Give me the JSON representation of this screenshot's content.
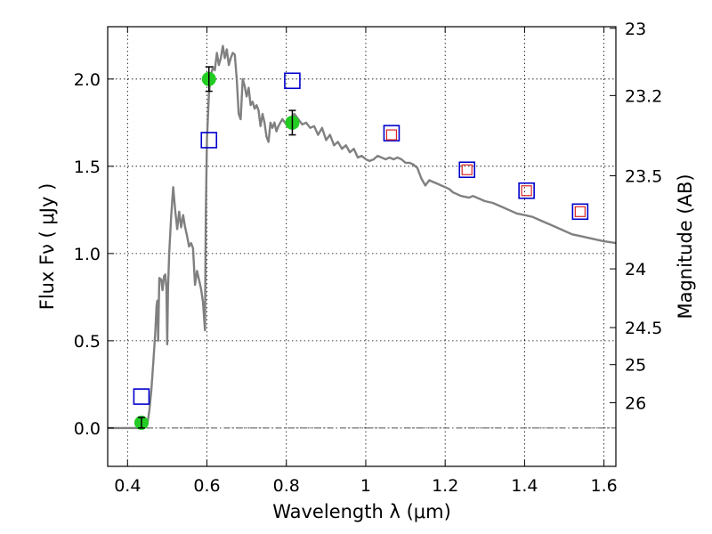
{
  "chart_data": {
    "type": "line",
    "title": "",
    "xlabel": "Wavelength  λ (μm)",
    "ylabel": "Flux  Fν  ( μJy )",
    "y2label": "Magnitude (AB)",
    "xlim": [
      0.35,
      1.63
    ],
    "ylim": [
      -0.22,
      2.3
    ],
    "grid": true,
    "legend": "none",
    "x_ticks": [
      {
        "value": 0.4,
        "label": "0.4"
      },
      {
        "value": 0.6,
        "label": "0.6"
      },
      {
        "value": 0.8,
        "label": "0.8"
      },
      {
        "value": 1.0,
        "label": "1"
      },
      {
        "value": 1.2,
        "label": "1.2"
      },
      {
        "value": 1.4,
        "label": "1.4"
      },
      {
        "value": 1.6,
        "label": "1.6"
      }
    ],
    "y_ticks": [
      {
        "value": 0.0,
        "label": "0.0"
      },
      {
        "value": 0.5,
        "label": "0.5"
      },
      {
        "value": 1.0,
        "label": "1.0"
      },
      {
        "value": 1.5,
        "label": "1.5"
      },
      {
        "value": 2.0,
        "label": "2.0"
      }
    ],
    "y2_ticks": [
      {
        "value": 23,
        "label": "23"
      },
      {
        "value": 23.2,
        "label": "23.2"
      },
      {
        "value": 23.5,
        "label": "23.5"
      },
      {
        "value": 24,
        "label": "24"
      },
      {
        "value": 24.5,
        "label": "24.5"
      },
      {
        "value": 25,
        "label": "25"
      },
      {
        "value": 26,
        "label": "26"
      }
    ],
    "zero_line": {
      "y": 0.0,
      "style": "dash-dot",
      "color": "#555555"
    },
    "series": [
      {
        "kind": "line",
        "color": "#808080",
        "points": [
          [
            0.35,
            0.0
          ],
          [
            0.44,
            0.0
          ],
          [
            0.45,
            0.02
          ],
          [
            0.455,
            0.1
          ],
          [
            0.46,
            0.22
          ],
          [
            0.465,
            0.38
          ],
          [
            0.47,
            0.55
          ],
          [
            0.473,
            0.7
          ],
          [
            0.475,
            0.73
          ],
          [
            0.477,
            0.5
          ],
          [
            0.48,
            0.86
          ],
          [
            0.485,
            0.85
          ],
          [
            0.488,
            0.79
          ],
          [
            0.492,
            0.87
          ],
          [
            0.495,
            0.88
          ],
          [
            0.498,
            0.8
          ],
          [
            0.5,
            0.48
          ],
          [
            0.502,
            0.8
          ],
          [
            0.505,
            1.0
          ],
          [
            0.51,
            1.22
          ],
          [
            0.515,
            1.38
          ],
          [
            0.52,
            1.25
          ],
          [
            0.525,
            1.14
          ],
          [
            0.53,
            1.24
          ],
          [
            0.535,
            1.15
          ],
          [
            0.54,
            1.22
          ],
          [
            0.545,
            1.15
          ],
          [
            0.55,
            1.1
          ],
          [
            0.555,
            1.04
          ],
          [
            0.56,
            1.06
          ],
          [
            0.565,
            1.03
          ],
          [
            0.57,
            0.82
          ],
          [
            0.575,
            0.9
          ],
          [
            0.58,
            0.85
          ],
          [
            0.585,
            0.8
          ],
          [
            0.59,
            0.72
          ],
          [
            0.595,
            0.56
          ],
          [
            0.597,
            1.2
          ],
          [
            0.6,
            1.65
          ],
          [
            0.605,
            1.92
          ],
          [
            0.61,
            2.02
          ],
          [
            0.615,
            2.07
          ],
          [
            0.62,
            2.05
          ],
          [
            0.625,
            2.15
          ],
          [
            0.63,
            2.08
          ],
          [
            0.635,
            2.12
          ],
          [
            0.64,
            2.19
          ],
          [
            0.645,
            2.12
          ],
          [
            0.65,
            2.17
          ],
          [
            0.655,
            2.08
          ],
          [
            0.66,
            2.12
          ],
          [
            0.665,
            2.15
          ],
          [
            0.67,
            2.14
          ],
          [
            0.675,
            2.0
          ],
          [
            0.68,
            1.8
          ],
          [
            0.685,
            1.77
          ],
          [
            0.69,
            2.0
          ],
          [
            0.695,
            1.96
          ],
          [
            0.7,
            1.9
          ],
          [
            0.705,
            1.95
          ],
          [
            0.71,
            1.85
          ],
          [
            0.715,
            1.87
          ],
          [
            0.72,
            1.83
          ],
          [
            0.725,
            1.85
          ],
          [
            0.73,
            1.82
          ],
          [
            0.735,
            1.73
          ],
          [
            0.74,
            1.8
          ],
          [
            0.745,
            1.75
          ],
          [
            0.75,
            1.67
          ],
          [
            0.755,
            1.64
          ],
          [
            0.76,
            1.75
          ],
          [
            0.765,
            1.72
          ],
          [
            0.77,
            1.75
          ],
          [
            0.775,
            1.7
          ],
          [
            0.78,
            1.73
          ],
          [
            0.79,
            1.77
          ],
          [
            0.8,
            1.74
          ],
          [
            0.81,
            1.76
          ],
          [
            0.82,
            1.8
          ],
          [
            0.83,
            1.77
          ],
          [
            0.84,
            1.74
          ],
          [
            0.85,
            1.75
          ],
          [
            0.86,
            1.72
          ],
          [
            0.87,
            1.73
          ],
          [
            0.88,
            1.68
          ],
          [
            0.89,
            1.72
          ],
          [
            0.9,
            1.65
          ],
          [
            0.91,
            1.68
          ],
          [
            0.92,
            1.62
          ],
          [
            0.93,
            1.64
          ],
          [
            0.94,
            1.6
          ],
          [
            0.95,
            1.62
          ],
          [
            0.96,
            1.58
          ],
          [
            0.97,
            1.6
          ],
          [
            0.98,
            1.55
          ],
          [
            0.99,
            1.56
          ],
          [
            1.0,
            1.54
          ],
          [
            1.01,
            1.53
          ],
          [
            1.02,
            1.54
          ],
          [
            1.03,
            1.56
          ],
          [
            1.04,
            1.55
          ],
          [
            1.05,
            1.54
          ],
          [
            1.06,
            1.55
          ],
          [
            1.07,
            1.54
          ],
          [
            1.08,
            1.55
          ],
          [
            1.09,
            1.54
          ],
          [
            1.1,
            1.52
          ],
          [
            1.11,
            1.52
          ],
          [
            1.12,
            1.51
          ],
          [
            1.13,
            1.49
          ],
          [
            1.14,
            1.43
          ],
          [
            1.15,
            1.39
          ],
          [
            1.16,
            1.42
          ],
          [
            1.17,
            1.41
          ],
          [
            1.18,
            1.4
          ],
          [
            1.19,
            1.39
          ],
          [
            1.2,
            1.38
          ],
          [
            1.21,
            1.37
          ],
          [
            1.22,
            1.35
          ],
          [
            1.23,
            1.34
          ],
          [
            1.24,
            1.33
          ],
          [
            1.26,
            1.32
          ],
          [
            1.27,
            1.33
          ],
          [
            1.28,
            1.32
          ],
          [
            1.3,
            1.3
          ],
          [
            1.32,
            1.29
          ],
          [
            1.34,
            1.27
          ],
          [
            1.36,
            1.25
          ],
          [
            1.38,
            1.23
          ],
          [
            1.4,
            1.22
          ],
          [
            1.42,
            1.21
          ],
          [
            1.44,
            1.19
          ],
          [
            1.46,
            1.17
          ],
          [
            1.48,
            1.15
          ],
          [
            1.5,
            1.13
          ],
          [
            1.52,
            1.11
          ],
          [
            1.54,
            1.1
          ],
          [
            1.56,
            1.09
          ],
          [
            1.58,
            1.08
          ],
          [
            1.6,
            1.07
          ],
          [
            1.63,
            1.06
          ]
        ]
      },
      {
        "kind": "scatter",
        "marker": "circle",
        "color": "#22cc22",
        "points": [
          {
            "x": 0.435,
            "y": 0.03,
            "err": 0.03
          },
          {
            "x": 0.605,
            "y": 2.0,
            "err": 0.07
          },
          {
            "x": 0.815,
            "y": 1.75,
            "err": 0.07
          }
        ]
      },
      {
        "kind": "scatter",
        "marker": "open-square",
        "color": "#0000cc",
        "points": [
          {
            "x": 0.435,
            "y": 0.18
          },
          {
            "x": 0.605,
            "y": 1.65
          },
          {
            "x": 0.815,
            "y": 1.99
          },
          {
            "x": 1.065,
            "y": 1.69
          },
          {
            "x": 1.255,
            "y": 1.48
          },
          {
            "x": 1.405,
            "y": 1.36
          },
          {
            "x": 1.54,
            "y": 1.24
          }
        ]
      },
      {
        "kind": "scatter",
        "marker": "open-square-small",
        "color": "#dd2222",
        "points": [
          {
            "x": 1.065,
            "y": 1.68
          },
          {
            "x": 1.255,
            "y": 1.48
          },
          {
            "x": 1.405,
            "y": 1.36
          },
          {
            "x": 1.54,
            "y": 1.24
          }
        ]
      }
    ]
  }
}
